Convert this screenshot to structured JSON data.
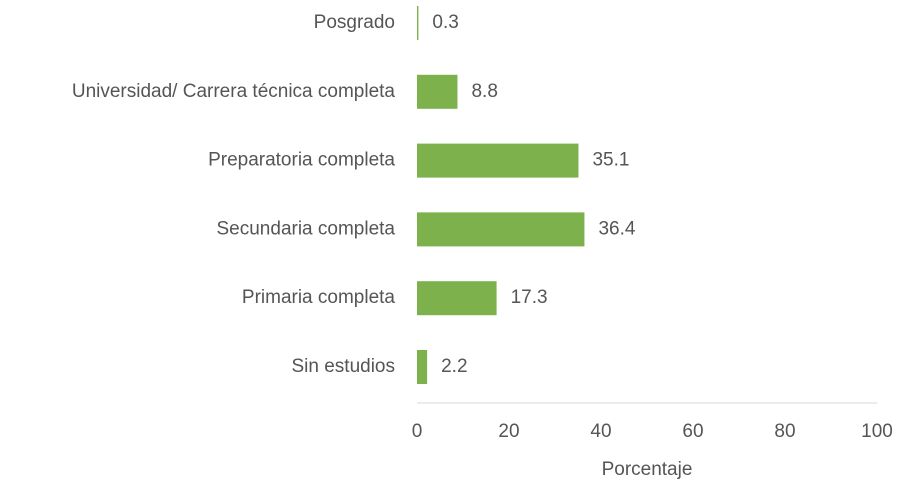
{
  "chart_data": {
    "type": "barh",
    "categories": [
      "Posgrado",
      "Universidad/ Carrera técnica completa",
      "Preparatoria completa",
      "Secundaria completa",
      "Primaria completa",
      "Sin estudios"
    ],
    "values": [
      0.3,
      8.8,
      35.1,
      36.4,
      17.3,
      2.2
    ],
    "color": "#7cb14b",
    "xlabel": "Porcentaje",
    "xlim": [
      0,
      100
    ],
    "xticks": [
      0,
      20,
      40,
      60,
      80,
      100
    ],
    "grid": false
  }
}
